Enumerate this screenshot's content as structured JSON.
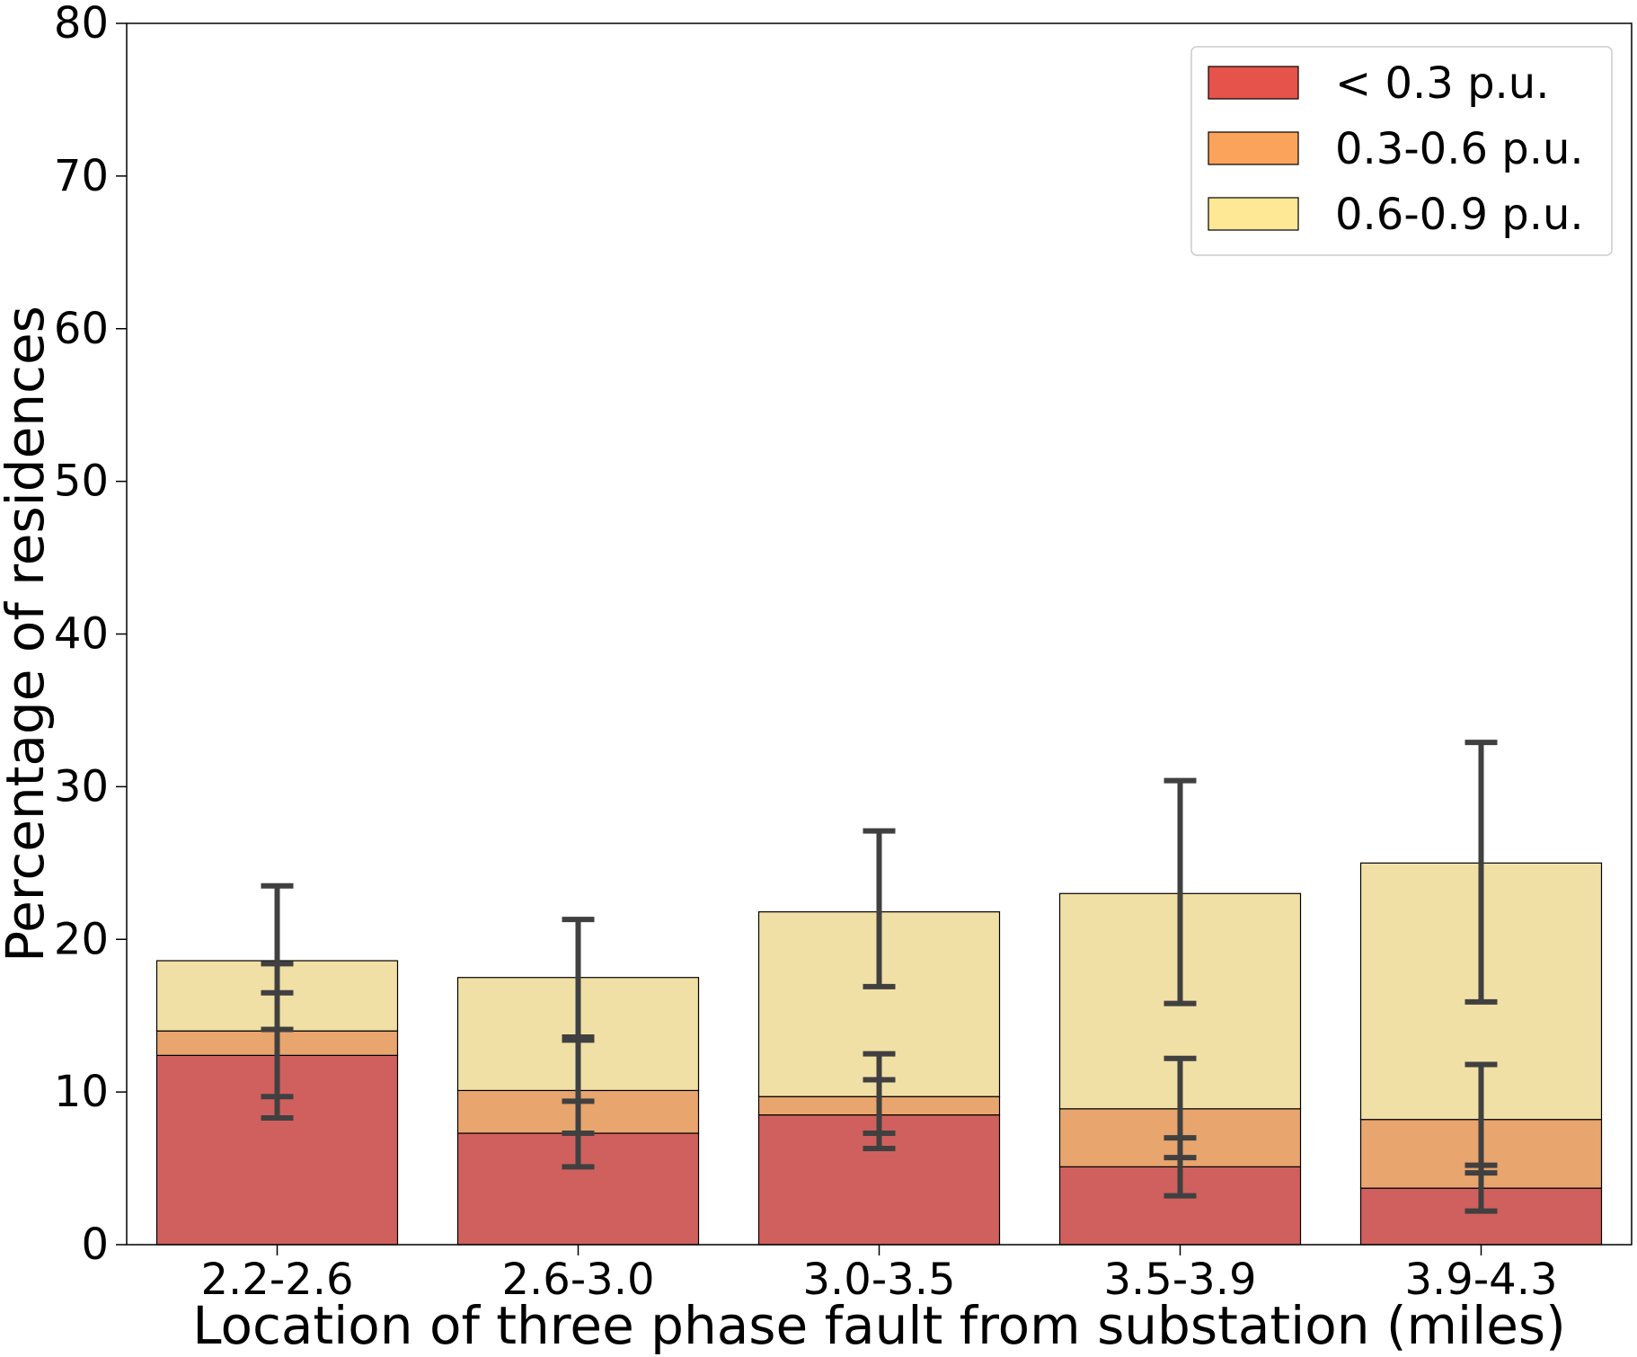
{
  "chart_data": {
    "type": "bar",
    "stacked": true,
    "title": "",
    "xlabel": "Location of three phase fault from substation (miles)",
    "ylabel": "Percentage of residences",
    "ylim": [
      0,
      80
    ],
    "yticks": [
      0,
      10,
      20,
      30,
      40,
      50,
      60,
      70,
      80
    ],
    "grid": false,
    "legend_position": "top-right",
    "categories": [
      "2.2-2.6",
      "2.6-3.0",
      "3.0-3.5",
      "3.5-3.9",
      "3.9-4.3"
    ],
    "series": [
      {
        "name": "< 0.3 p.u.",
        "legend_color": "#e5534b",
        "bar_color": "#d0605d",
        "values": [
          12.4,
          7.3,
          8.5,
          5.1,
          3.7
        ],
        "error_range": [
          [
            8.3,
            16.5
          ],
          [
            5.1,
            9.4
          ],
          [
            6.3,
            10.8
          ],
          [
            3.2,
            7.0
          ],
          [
            2.2,
            5.2
          ]
        ]
      },
      {
        "name": "0.3-0.6 p.u.",
        "legend_color": "#fba35b",
        "bar_color": "#e8a56e",
        "values": [
          1.6,
          2.8,
          1.2,
          3.8,
          4.5
        ],
        "error_range": [
          [
            9.7,
            18.4
          ],
          [
            7.3,
            13.4
          ],
          [
            7.3,
            12.5
          ],
          [
            5.7,
            12.2
          ],
          [
            4.7,
            11.8
          ]
        ]
      },
      {
        "name": "0.6-0.9 p.u.",
        "legend_color": "#fee795",
        "bar_color": "#f1e0a6",
        "values": [
          4.6,
          7.4,
          12.1,
          14.1,
          16.8
        ],
        "error_range": [
          [
            14.1,
            23.5
          ],
          [
            13.6,
            21.3
          ],
          [
            16.9,
            27.1
          ],
          [
            15.8,
            30.4
          ],
          [
            15.9,
            32.9
          ]
        ]
      }
    ]
  }
}
